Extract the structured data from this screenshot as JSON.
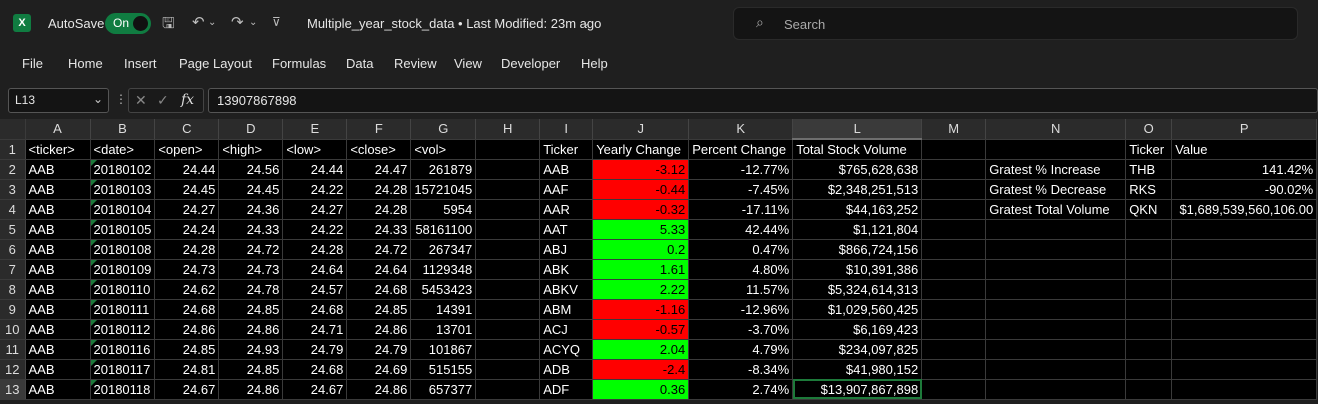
{
  "app": {
    "logo_letter": "X",
    "autosave_label": "AutoSave",
    "autosave_state": "On",
    "doc_title": "Multiple_year_stock_data  •  Last Modified: 23m ago",
    "search_placeholder": "Search"
  },
  "menu": [
    "File",
    "Home",
    "Insert",
    "Page Layout",
    "Formulas",
    "Data",
    "Review",
    "View",
    "Developer",
    "Help"
  ],
  "formula_bar": {
    "name_box": "L13",
    "fx": "fx",
    "value": "13907867898"
  },
  "columns": [
    "A",
    "B",
    "C",
    "D",
    "E",
    "F",
    "G",
    "H",
    "I",
    "J",
    "K",
    "L",
    "M",
    "N",
    "O",
    "P"
  ],
  "selected_column": "L",
  "rows": [
    {
      "n": "1",
      "c": [
        "<ticker>",
        "<date>",
        "<open>",
        "<high>",
        "<low>",
        "<close>",
        "<vol>",
        "",
        "Ticker",
        "Yearly Change",
        "Percent Change",
        "Total Stock Volume",
        "",
        "",
        "Ticker",
        "Value"
      ]
    },
    {
      "n": "2",
      "c": [
        "AAB",
        "20180102",
        "24.44",
        "24.56",
        "24.44",
        "24.47",
        "261879",
        "",
        "AAB",
        "-3.12",
        "-12.77%",
        "$765,628,638",
        "",
        "Gratest % Increase",
        "THB",
        "141.42%"
      ]
    },
    {
      "n": "3",
      "c": [
        "AAB",
        "20180103",
        "24.45",
        "24.45",
        "24.22",
        "24.28",
        "15721045",
        "",
        "AAF",
        "-0.44",
        "-7.45%",
        "$2,348,251,513",
        "",
        "Gratest % Decrease",
        "RKS",
        "-90.02%"
      ]
    },
    {
      "n": "4",
      "c": [
        "AAB",
        "20180104",
        "24.27",
        "24.36",
        "24.27",
        "24.28",
        "5954",
        "",
        "AAR",
        "-0.32",
        "-17.11%",
        "$44,163,252",
        "",
        "Gratest Total Volume",
        "QKN",
        "$1,689,539,560,106.00"
      ]
    },
    {
      "n": "5",
      "c": [
        "AAB",
        "20180105",
        "24.24",
        "24.33",
        "24.22",
        "24.33",
        "58161100",
        "",
        "AAT",
        "5.33",
        "42.44%",
        "$1,121,804",
        "",
        "",
        "",
        ""
      ]
    },
    {
      "n": "6",
      "c": [
        "AAB",
        "20180108",
        "24.28",
        "24.72",
        "24.28",
        "24.72",
        "267347",
        "",
        "ABJ",
        "0.2",
        "0.47%",
        "$866,724,156",
        "",
        "",
        "",
        ""
      ]
    },
    {
      "n": "7",
      "c": [
        "AAB",
        "20180109",
        "24.73",
        "24.73",
        "24.64",
        "24.64",
        "1129348",
        "",
        "ABK",
        "1.61",
        "4.80%",
        "$10,391,386",
        "",
        "",
        "",
        ""
      ]
    },
    {
      "n": "8",
      "c": [
        "AAB",
        "20180110",
        "24.62",
        "24.78",
        "24.57",
        "24.68",
        "5453423",
        "",
        "ABKV",
        "2.22",
        "11.57%",
        "$5,324,614,313",
        "",
        "",
        "",
        ""
      ]
    },
    {
      "n": "9",
      "c": [
        "AAB",
        "20180111",
        "24.68",
        "24.85",
        "24.68",
        "24.85",
        "14391",
        "",
        "ABM",
        "-1.16",
        "-12.96%",
        "$1,029,560,425",
        "",
        "",
        "",
        ""
      ]
    },
    {
      "n": "10",
      "c": [
        "AAB",
        "20180112",
        "24.86",
        "24.86",
        "24.71",
        "24.86",
        "13701",
        "",
        "ACJ",
        "-0.57",
        "-3.70%",
        "$6,169,423",
        "",
        "",
        "",
        ""
      ]
    },
    {
      "n": "11",
      "c": [
        "AAB",
        "20180116",
        "24.85",
        "24.93",
        "24.79",
        "24.79",
        "101867",
        "",
        "ACYQ",
        "2.04",
        "4.79%",
        "$234,097,825",
        "",
        "",
        "",
        ""
      ]
    },
    {
      "n": "12",
      "c": [
        "AAB",
        "20180117",
        "24.81",
        "24.85",
        "24.68",
        "24.69",
        "515155",
        "",
        "ADB",
        "-2.4",
        "-8.34%",
        "$41,980,152",
        "",
        "",
        "",
        ""
      ]
    },
    {
      "n": "13",
      "c": [
        "AAB",
        "20180118",
        "24.67",
        "24.86",
        "24.67",
        "24.86",
        "657377",
        "",
        "ADF",
        "0.36",
        "2.74%",
        "$13,907,867,898",
        "",
        "",
        "",
        ""
      ]
    }
  ],
  "colors": {
    "positive": "#00ff00",
    "negative": "#ff0000",
    "accent": "#107c41"
  }
}
